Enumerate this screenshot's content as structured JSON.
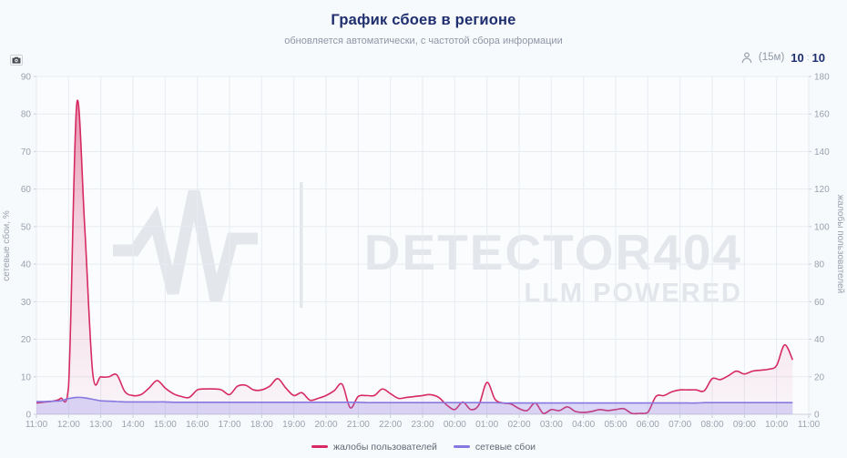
{
  "header": {
    "title": "График сбоев в регионе",
    "subtitle": "обновляется автоматически, с частотой сбора информации"
  },
  "meta": {
    "interval_label": "(15м)",
    "stat_primary": "10",
    "stat_divider": ":",
    "stat_secondary": "10"
  },
  "watermark": {
    "brand": "DETECTOR404",
    "tagline": "LLM POWERED"
  },
  "colors": {
    "complaints": "#d62a61",
    "failures": "#8678e0",
    "title_navy": "#1e2e6e",
    "muted_gray": "#8f96a6",
    "grid": "#e8ebf0",
    "watermark": "#e3e7ec"
  },
  "chart_data": {
    "type": "area",
    "title": "График сбоев в регионе",
    "grid": true,
    "legend_position": "bottom",
    "x_ticks": [
      "11:00",
      "12:00",
      "13:00",
      "14:00",
      "15:00",
      "16:00",
      "17:00",
      "18:00",
      "19:00",
      "20:00",
      "21:00",
      "22:00",
      "23:00",
      "00:00",
      "01:00",
      "02:00",
      "03:00",
      "04:00",
      "05:00",
      "06:00",
      "07:00",
      "08:00",
      "09:00",
      "10:00",
      "11:00"
    ],
    "x_start": "11:00",
    "x_step_hours": 0.25,
    "x_span_hours": 24,
    "axes": {
      "left": {
        "label": "сетевые сбои, %",
        "min": 0,
        "max": 90,
        "tick_step": 10
      },
      "right": {
        "label": "жалобы пользователей",
        "min": 0,
        "max": 180,
        "tick_step": 20
      }
    },
    "series": [
      {
        "name": "жалобы пользователей",
        "axis": "right",
        "color": "#d62a61",
        "values": [
          6,
          6.5,
          7,
          8.5,
          15,
          165,
          100,
          22,
          20,
          20,
          21,
          12,
          10,
          10.5,
          14,
          18,
          14,
          11,
          9.5,
          9,
          13,
          13.5,
          13.5,
          13,
          10.5,
          15,
          15.5,
          13,
          13,
          15,
          19,
          14,
          10,
          11.5,
          7.5,
          8.5,
          10,
          12.5,
          16,
          3.5,
          9.5,
          10,
          10,
          13.5,
          11,
          8.5,
          9,
          9.5,
          10,
          10.5,
          9,
          5,
          2.5,
          6.5,
          2.5,
          5,
          17,
          8,
          6,
          5.5,
          3,
          2,
          6,
          0.5,
          2.5,
          2,
          4,
          1.5,
          1,
          1.5,
          2.5,
          2,
          2.5,
          3,
          0.5,
          0.5,
          1,
          9.5,
          10,
          12,
          13,
          13,
          13,
          12.5,
          19,
          18.5,
          20.5,
          23,
          21.5,
          23,
          23.5,
          24,
          26,
          37,
          29
        ]
      },
      {
        "name": "сетевые сбои",
        "axis": "left",
        "color": "#8678e0",
        "values": [
          3.4,
          3.4,
          3.5,
          3.6,
          4.2,
          4.5,
          4.4,
          4,
          3.6,
          3.5,
          3.4,
          3.3,
          3.3,
          3.3,
          3.3,
          3.3,
          3.3,
          3.2,
          3.2,
          3.2,
          3.2,
          3.2,
          3.2,
          3.2,
          3.2,
          3.2,
          3.2,
          3.2,
          3.2,
          3.2,
          3.2,
          3.2,
          3.2,
          3.2,
          3.2,
          3.2,
          3.2,
          3.2,
          3.2,
          3.2,
          3.2,
          3.1,
          3.1,
          3.1,
          3.1,
          3.1,
          3.1,
          3.1,
          3.1,
          3.1,
          3.1,
          3.1,
          3.1,
          3.1,
          3.1,
          3.1,
          3.1,
          3.1,
          3,
          3,
          3,
          3,
          3,
          3,
          3,
          3,
          3,
          3,
          3,
          3,
          3,
          3,
          3,
          3,
          3,
          3,
          3,
          3,
          3,
          3,
          3,
          3,
          3,
          3.1,
          3.1,
          3.1,
          3.1,
          3.1,
          3.1,
          3.1,
          3.1,
          3.1,
          3.1,
          3.1,
          3.1
        ]
      }
    ]
  }
}
